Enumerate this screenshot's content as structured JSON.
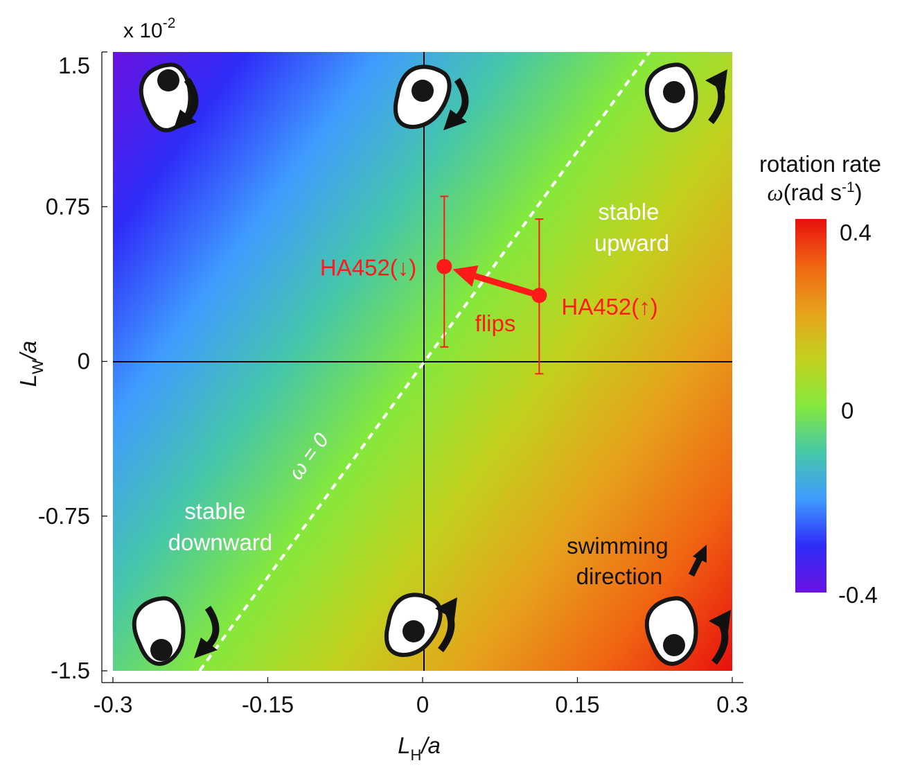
{
  "chart_data": {
    "type": "heatmap",
    "title": "",
    "xlabel": "L_H/a",
    "xlabel_main": "L",
    "xlabel_sub": "H",
    "xlabel_tail": "/a",
    "ylabel_main": "L",
    "ylabel_sub": "W",
    "ylabel_tail": "/a",
    "y_multiplier": "x 10",
    "y_multiplier_exp": "-2",
    "xlim": [
      -0.3,
      0.3
    ],
    "ylim": [
      -1.5,
      1.5
    ],
    "xticks": [
      -0.3,
      -0.15,
      0,
      0.15,
      0.3
    ],
    "xtick_labels": [
      "-0.3",
      "-0.15",
      "0",
      "0.15",
      "0.3"
    ],
    "yticks": [
      1.5,
      0.75,
      0,
      -0.75,
      -1.5
    ],
    "ytick_labels": [
      "1.5",
      "0.75",
      "0",
      "-0.75",
      "-1.5"
    ],
    "colorbar": {
      "label_line1": "rotation rate",
      "label_omega": "ω",
      "label_unit": "(rad s",
      "label_exp": "-1",
      "label_close": ")",
      "range": [
        -0.4,
        0.4
      ],
      "tick_labels": [
        "0.4",
        "0",
        "-0.4"
      ],
      "ticks": [
        0.4,
        0,
        -0.4
      ],
      "colormap": [
        "#6a12e0",
        "#2f2cf8",
        "#3f9cff",
        "#46c7a8",
        "#84e83c",
        "#c2d11e",
        "#e6a21c",
        "#f06512",
        "#e8100e"
      ]
    },
    "zero_line_label": "ω = 0",
    "zero_line_endpoints": [
      [
        -0.216,
        -1.5
      ],
      [
        0.22,
        1.5
      ]
    ],
    "points": [
      {
        "name": "HA452(↓)",
        "x": 0.021,
        "y": 0.46,
        "y_err_low": 0.07,
        "y_err_high": 0.8
      },
      {
        "name": "HA452(↑)",
        "x": 0.113,
        "y": 0.32,
        "y_err_low": -0.06,
        "y_err_high": 0.69
      }
    ],
    "point_color": "#ff1a1a",
    "annotations": {
      "flips": "flips",
      "stable_upward": [
        "stable",
        "upward"
      ],
      "stable_downward": [
        "stable",
        "downward"
      ],
      "swimming_direction": [
        "swimming",
        "direction"
      ]
    },
    "cell_icons": [
      {
        "position": "top-left",
        "rotation": "clockwise"
      },
      {
        "position": "top-center",
        "rotation": "clockwise"
      },
      {
        "position": "top-right",
        "rotation": "counterclockwise"
      },
      {
        "position": "bottom-left",
        "rotation": "clockwise"
      },
      {
        "position": "bottom-center",
        "rotation": "counterclockwise"
      },
      {
        "position": "bottom-right",
        "rotation": "counterclockwise"
      }
    ]
  }
}
